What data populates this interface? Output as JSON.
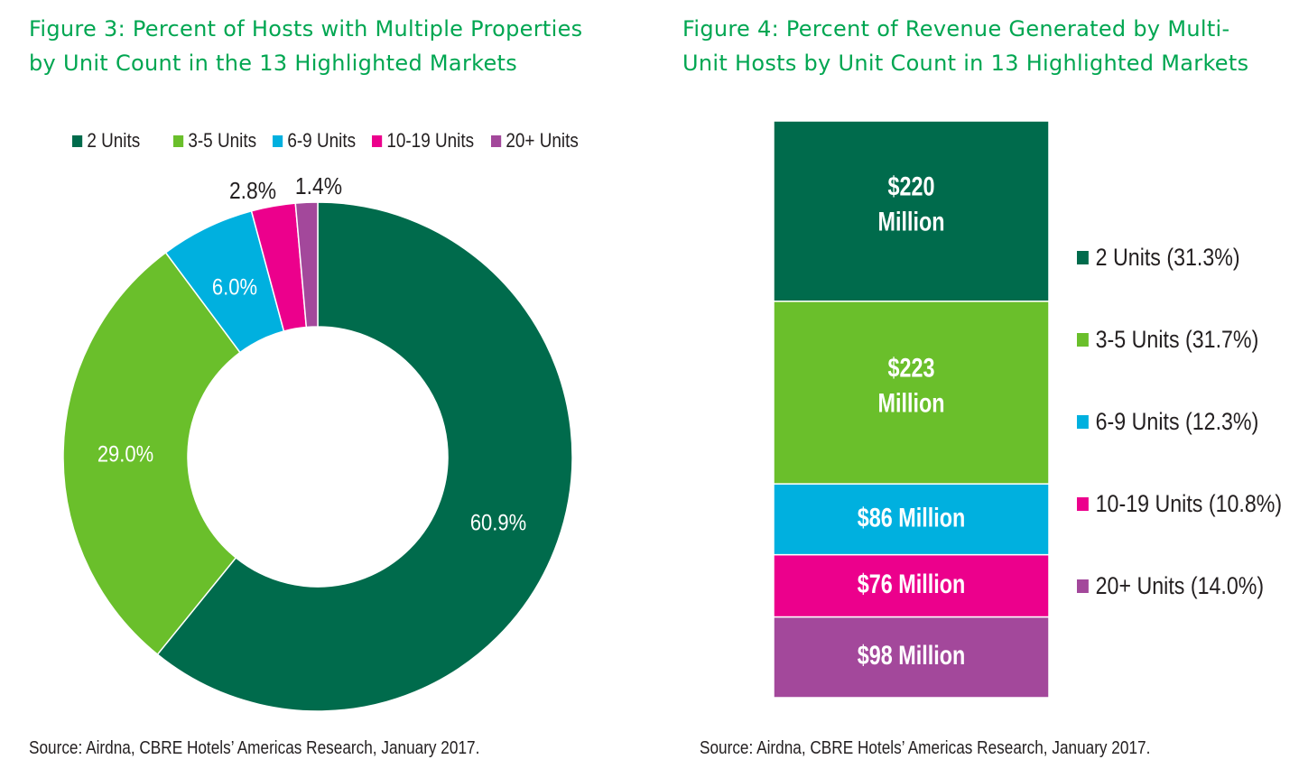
{
  "figure3": {
    "title_line1": "Figure 3: Percent of Hosts with Multiple Properties",
    "title_line2": "by Unit Count in the 13 Highlighted Markets",
    "source": "Source: Airdna, CBRE Hotels’ Americas Research, January 2017."
  },
  "figure4": {
    "title_line1": "Figure 4: Percent of Revenue Generated by Multi-",
    "title_line2": "Unit Hosts by Unit Count in 13 Highlighted Markets",
    "source": "Source: Airdna, CBRE Hotels’ Americas Research, January 2017."
  },
  "chart_data": [
    {
      "type": "pie",
      "variant": "donut",
      "categories": [
        "2 Units",
        "3-5 Units",
        "6-9 Units",
        "10-19 Units",
        "20+ Units"
      ],
      "values": [
        60.9,
        29.0,
        6.0,
        2.8,
        1.4
      ],
      "data_labels": [
        "60.9%",
        "29.0%",
        "6.0%",
        "2.8%",
        "1.4%"
      ],
      "colors": [
        "#006b4c",
        "#6abf2b",
        "#00b0df",
        "#ec008c",
        "#a3489b"
      ],
      "legend_position": "top"
    },
    {
      "type": "bar",
      "variant": "stacked-100",
      "categories": [
        "2 Units (31.3%)",
        "3-5 Units (31.7%)",
        "6-9 Units (12.3%)",
        "10-19 Units (10.8%)",
        "20+ Units (14.0%)"
      ],
      "values": [
        220,
        223,
        86,
        76,
        98
      ],
      "percents": [
        31.3,
        31.7,
        12.3,
        10.8,
        14.0
      ],
      "data_labels": [
        [
          "$220",
          "Million"
        ],
        [
          "$223",
          "Million"
        ],
        [
          "$86 Million"
        ],
        [
          "$76 Million"
        ],
        [
          "$98 Million"
        ]
      ],
      "colors": [
        "#006b4c",
        "#6abf2b",
        "#00b0df",
        "#ec008c",
        "#a3489b"
      ],
      "legend_position": "right"
    }
  ]
}
